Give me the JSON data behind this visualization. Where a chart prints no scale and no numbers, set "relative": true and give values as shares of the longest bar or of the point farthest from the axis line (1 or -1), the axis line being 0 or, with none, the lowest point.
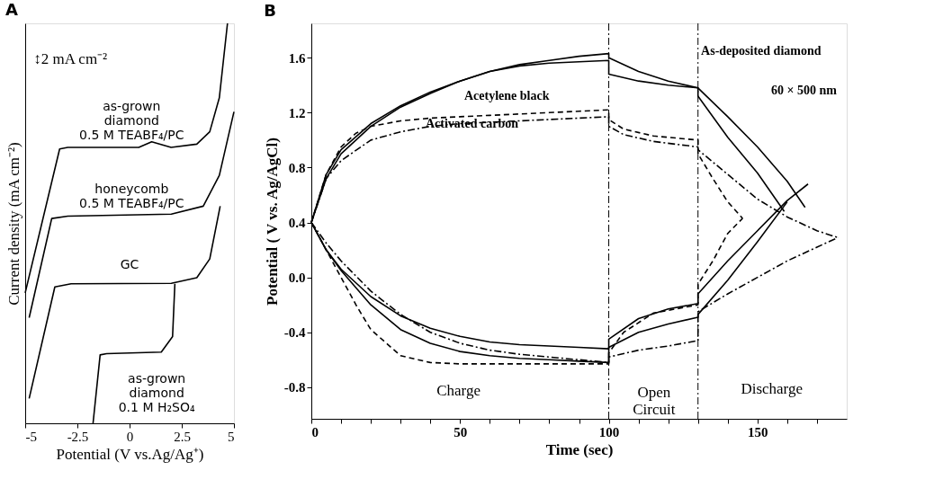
{
  "chart_data": [
    {
      "type": "line",
      "title": "A",
      "xlabel": "Potential (V vs.Ag/Ag⁺)",
      "ylabel": "Current density (mA cm⁻²)",
      "relative": true,
      "tick_labels": "x",
      "grid": false,
      "line_style": "solid",
      "xlim": [
        -5,
        5
      ],
      "xticks": [
        -5,
        -2.5,
        0,
        2.5,
        5
      ],
      "series": [
        {
          "color": "#000000",
          "x": [
            -5.0,
            -3.35,
            -2.96,
            0.44,
            1.06,
            1.99,
            3.22,
            3.84,
            4.3,
            4.69
          ],
          "values": [
            0.326,
            0.686,
            0.69,
            0.69,
            0.704,
            0.69,
            0.698,
            0.729,
            0.814,
            1.0
          ]
        },
        {
          "color": "#000000",
          "x": [
            -4.81,
            -3.73,
            -2.96,
            2.0,
            3.53,
            4.3,
            5.0
          ],
          "values": [
            0.264,
            0.512,
            0.518,
            0.523,
            0.543,
            0.62,
            0.779
          ]
        },
        {
          "color": "#000000",
          "x": [
            -4.81,
            -3.58,
            -2.8,
            2.0,
            3.22,
            3.84,
            4.34
          ],
          "values": [
            0.062,
            0.341,
            0.349,
            0.35,
            0.364,
            0.411,
            0.543
          ]
        },
        {
          "color": "#000000",
          "x": [
            -1.75,
            -1.41,
            -1.1,
            1.52,
            2.06,
            2.17
          ],
          "values": [
            0.0,
            0.171,
            0.174,
            0.178,
            0.217,
            0.349
          ]
        }
      ],
      "annotations": [
        "↕2 mA cm⁻²",
        "as-grown\ndiamond\n0.5 M TEABF₄/PC",
        "honeycomb\n0.5 M TEABF₄/PC",
        "GC",
        "as-grown\ndiamond\n0.1 M H₂SO₄"
      ]
    },
    {
      "type": "line",
      "title": "B",
      "xlabel": "Time (sec)",
      "ylabel": "Potential  ( V vs. Ag/AgCl)",
      "grid": false,
      "xlim": [
        0,
        180
      ],
      "ylim": [
        -1.03,
        1.85
      ],
      "xticks": [
        0,
        {
          "value": 10,
          "label": null
        },
        {
          "value": 20,
          "label": null
        },
        {
          "value": 30,
          "label": null
        },
        {
          "value": 40,
          "label": null
        },
        50,
        {
          "value": 60,
          "label": null
        },
        {
          "value": 70,
          "label": null
        },
        {
          "value": 80,
          "label": null
        },
        {
          "value": 90,
          "label": null
        },
        100,
        {
          "value": 110,
          "label": null
        },
        {
          "value": 120,
          "label": null
        },
        {
          "value": 130,
          "label": null
        },
        {
          "value": 140,
          "label": null
        },
        150,
        {
          "value": 160,
          "label": null
        },
        {
          "value": 170,
          "label": null
        }
      ],
      "yticks": [
        -0.8,
        -0.4,
        {
          "value": 0,
          "label": "0.0"
        },
        0.4,
        0.8,
        1.2,
        1.6
      ],
      "series": [
        {
          "color": "#000000",
          "line_style": "solid",
          "x": [
            0,
            5,
            10,
            20,
            30,
            40,
            50,
            60,
            70,
            80,
            90,
            100,
            100,
            110,
            120,
            130,
            130,
            140,
            150,
            159
          ],
          "values": [
            0.4,
            0.75,
            0.93,
            1.12,
            1.25,
            1.35,
            1.43,
            1.5,
            1.55,
            1.58,
            1.61,
            1.63,
            1.6,
            1.5,
            1.43,
            1.38,
            1.32,
            1.02,
            0.76,
            0.48
          ]
        },
        {
          "color": "#000000",
          "line_style": "solid",
          "x": [
            0,
            5,
            10,
            20,
            30,
            40,
            50,
            60,
            70,
            80,
            90,
            100,
            100,
            110,
            120,
            130,
            130,
            140,
            150,
            160,
            166
          ],
          "values": [
            0.4,
            0.72,
            0.9,
            1.1,
            1.24,
            1.34,
            1.43,
            1.5,
            1.54,
            1.56,
            1.57,
            1.58,
            1.48,
            1.43,
            1.4,
            1.38,
            1.38,
            1.17,
            0.95,
            0.7,
            0.51
          ]
        },
        {
          "color": "#000000",
          "line_style": "solid",
          "x": [
            0,
            5,
            10,
            20,
            30,
            40,
            50,
            60,
            70,
            80,
            90,
            100,
            100,
            110,
            120,
            130,
            130,
            140,
            150,
            160,
            167
          ],
          "values": [
            0.4,
            0.2,
            0.06,
            -0.14,
            -0.28,
            -0.37,
            -0.43,
            -0.47,
            -0.49,
            -0.5,
            -0.51,
            -0.52,
            -0.45,
            -0.3,
            -0.23,
            -0.19,
            -0.12,
            0.12,
            0.34,
            0.56,
            0.68
          ]
        },
        {
          "color": "#000000",
          "line_style": "solid",
          "x": [
            0,
            5,
            10,
            20,
            30,
            40,
            50,
            60,
            70,
            80,
            90,
            100,
            100,
            110,
            120,
            130,
            130,
            140,
            150,
            160
          ],
          "values": [
            0.4,
            0.2,
            0.05,
            -0.2,
            -0.38,
            -0.48,
            -0.54,
            -0.57,
            -0.59,
            -0.6,
            -0.61,
            -0.62,
            -0.51,
            -0.4,
            -0.34,
            -0.29,
            -0.27,
            -0.02,
            0.26,
            0.55
          ]
        },
        {
          "color": "#000000",
          "line_style": "dashed",
          "x": [
            0,
            5,
            10,
            15,
            20,
            30,
            40,
            50,
            60,
            70,
            80,
            90,
            100,
            100,
            105,
            115,
            130,
            130,
            135,
            140,
            145
          ],
          "values": [
            0.4,
            0.75,
            0.95,
            1.05,
            1.1,
            1.14,
            1.16,
            1.17,
            1.18,
            1.19,
            1.2,
            1.21,
            1.22,
            1.15,
            1.08,
            1.03,
            1.0,
            0.9,
            0.72,
            0.55,
            0.43
          ]
        },
        {
          "color": "#000000",
          "line_style": "dashed",
          "x": [
            0,
            5,
            10,
            15,
            20,
            30,
            40,
            50,
            60,
            80,
            100,
            100,
            105,
            115,
            130,
            130,
            135,
            140,
            145
          ],
          "values": [
            0.4,
            0.2,
            0.0,
            -0.2,
            -0.38,
            -0.57,
            -0.62,
            -0.63,
            -0.63,
            -0.63,
            -0.63,
            -0.55,
            -0.4,
            -0.26,
            -0.2,
            -0.05,
            0.12,
            0.32,
            0.43
          ]
        },
        {
          "color": "#000000",
          "line_style": "dotted",
          "x": [
            0,
            5,
            10,
            20,
            30,
            40,
            50,
            60,
            70,
            80,
            90,
            100,
            100,
            105,
            115,
            130,
            130,
            140,
            150,
            160,
            170,
            177
          ],
          "values": [
            0.4,
            0.72,
            0.85,
            1.0,
            1.06,
            1.1,
            1.12,
            1.13,
            1.14,
            1.15,
            1.16,
            1.17,
            1.1,
            1.04,
            0.99,
            0.95,
            0.93,
            0.75,
            0.57,
            0.44,
            0.34,
            0.29
          ]
        },
        {
          "color": "#000000",
          "line_style": "dotted",
          "x": [
            0,
            5,
            10,
            20,
            30,
            40,
            50,
            60,
            70,
            80,
            90,
            100,
            100,
            110,
            120,
            130,
            130,
            140,
            150,
            160,
            170,
            177
          ],
          "values": [
            0.4,
            0.25,
            0.12,
            -0.1,
            -0.27,
            -0.4,
            -0.48,
            -0.53,
            -0.56,
            -0.58,
            -0.6,
            -0.62,
            -0.58,
            -0.53,
            -0.5,
            -0.46,
            -0.25,
            -0.12,
            0.0,
            0.12,
            0.22,
            0.29
          ]
        }
      ],
      "ref_lines": [
        {
          "axis": "x",
          "value": 100,
          "label": null,
          "line_style": "dotted",
          "color": "#000000"
        },
        {
          "axis": "x",
          "value": 130,
          "label": null,
          "line_style": "dotted",
          "color": "#000000"
        }
      ],
      "annotations": [
        "Acetylene black",
        "Activated carbon",
        "As-deposited diamond",
        "60 × 500 nm",
        "Charge",
        "Open\nCircuit",
        "Discharge"
      ]
    }
  ]
}
